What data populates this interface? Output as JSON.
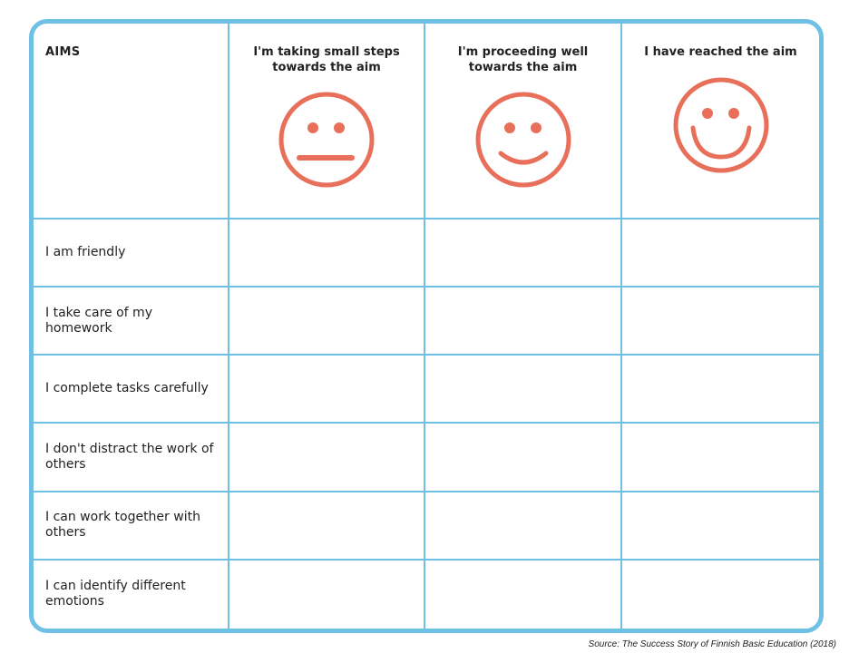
{
  "header": {
    "aims": "AIMS",
    "levels": [
      {
        "label": "I'm taking small steps towards the aim",
        "icon": "neutral-face-icon"
      },
      {
        "label": "I'm proceeding well towards the aim",
        "icon": "smile-face-icon"
      },
      {
        "label": "I have reached the aim",
        "icon": "big-smile-face-icon"
      }
    ]
  },
  "rows": [
    "I am friendly",
    "I take care of my homework",
    "I complete tasks carefully",
    "I don't distract the work of others",
    "I can work together with others",
    "I can identify different emotions"
  ],
  "source": "Source: The Success Story of Finnish Basic Education (2018)",
  "colors": {
    "border": "#6ec1e4",
    "face": "#e8705a"
  }
}
